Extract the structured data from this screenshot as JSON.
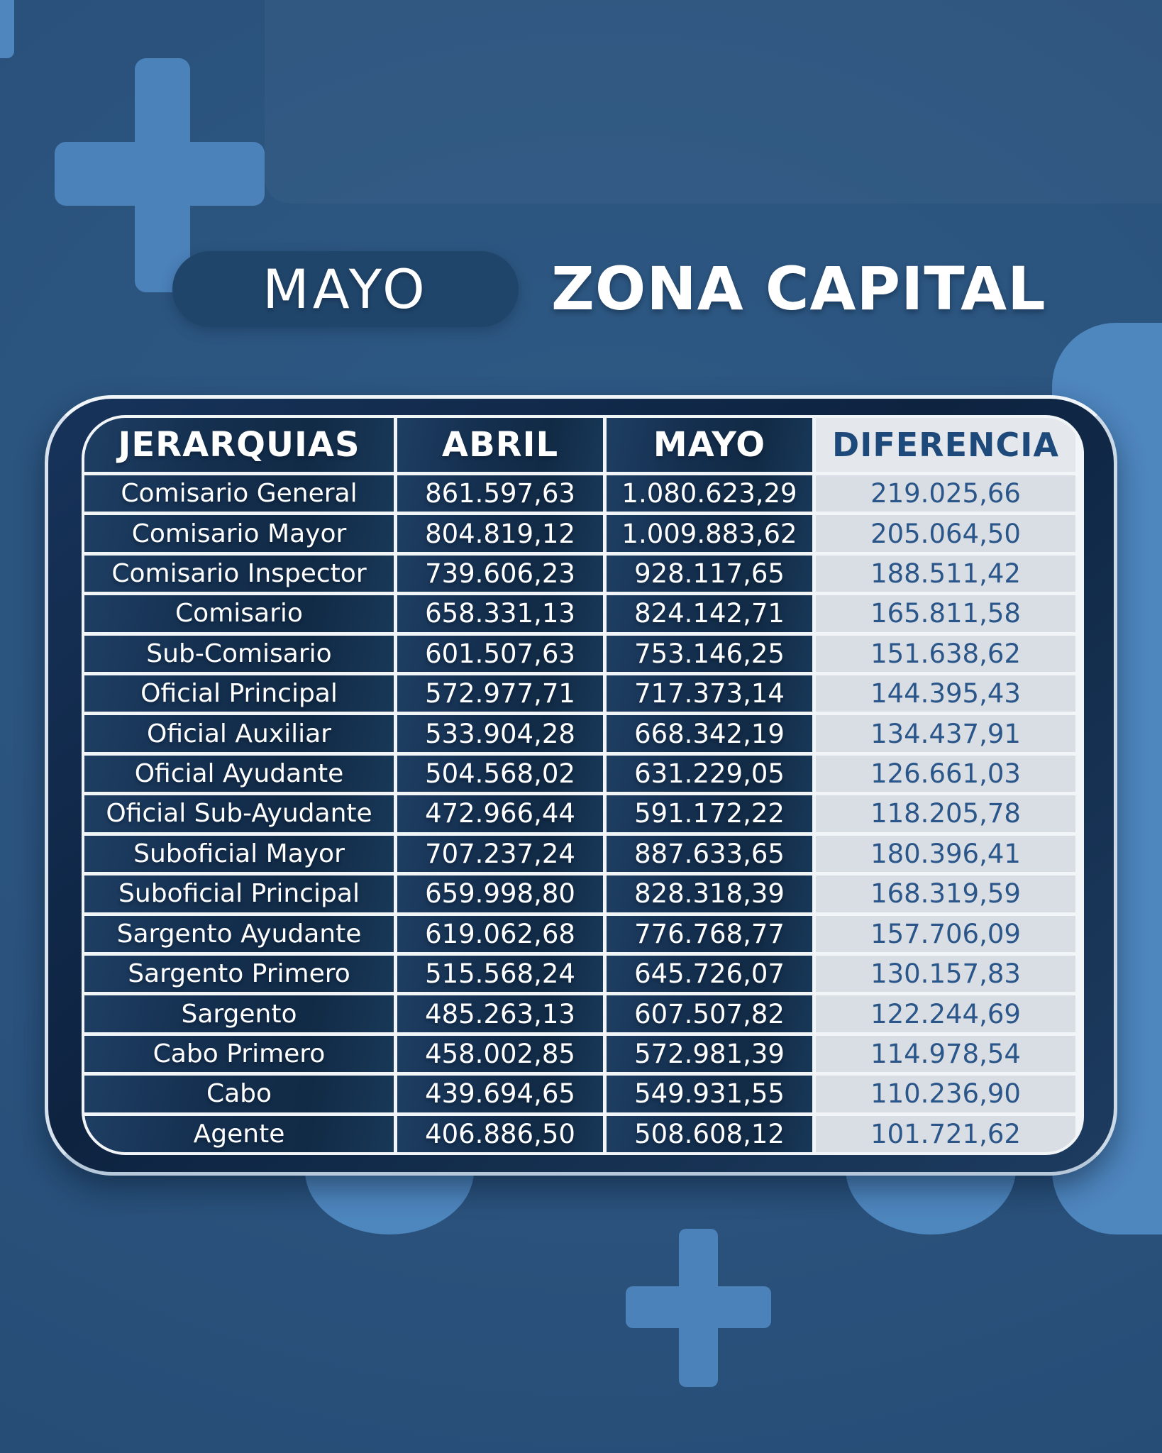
{
  "title": {
    "month_label": "MAYO",
    "zone_label": "ZONA CAPITAL"
  },
  "colors": {
    "page_background": "#2a527c",
    "decoration_light_blue": "#4c84bb",
    "card_navy": "#122c49",
    "grid_line_white": "#f2f5f8",
    "difference_column_gray": "#d9dee4",
    "difference_text_blue": "#2a568a"
  },
  "chart_data": {
    "type": "table",
    "title": "MAYO ZONA CAPITAL",
    "columns": [
      "JERARQUIAS",
      "ABRIL",
      "MAYO",
      "DIFERENCIA"
    ],
    "rows": [
      {
        "jerarquia": "Comisario General",
        "abril": "861.597,63",
        "mayo": "1.080.623,29",
        "diferencia": "219.025,66"
      },
      {
        "jerarquia": "Comisario Mayor",
        "abril": "804.819,12",
        "mayo": "1.009.883,62",
        "diferencia": "205.064,50"
      },
      {
        "jerarquia": "Comisario Inspector",
        "abril": "739.606,23",
        "mayo": "928.117,65",
        "diferencia": "188.511,42"
      },
      {
        "jerarquia": "Comisario",
        "abril": "658.331,13",
        "mayo": "824.142,71",
        "diferencia": "165.811,58"
      },
      {
        "jerarquia": "Sub-Comisario",
        "abril": "601.507,63",
        "mayo": "753.146,25",
        "diferencia": "151.638,62"
      },
      {
        "jerarquia": "Oficial Principal",
        "abril": "572.977,71",
        "mayo": "717.373,14",
        "diferencia": "144.395,43"
      },
      {
        "jerarquia": "Oficial Auxiliar",
        "abril": "533.904,28",
        "mayo": "668.342,19",
        "diferencia": "134.437,91"
      },
      {
        "jerarquia": "Oficial Ayudante",
        "abril": "504.568,02",
        "mayo": "631.229,05",
        "diferencia": "126.661,03"
      },
      {
        "jerarquia": "Oficial Sub-Ayudante",
        "abril": "472.966,44",
        "mayo": "591.172,22",
        "diferencia": "118.205,78"
      },
      {
        "jerarquia": "Suboficial Mayor",
        "abril": "707.237,24",
        "mayo": "887.633,65",
        "diferencia": "180.396,41"
      },
      {
        "jerarquia": "Suboficial Principal",
        "abril": "659.998,80",
        "mayo": "828.318,39",
        "diferencia": "168.319,59"
      },
      {
        "jerarquia": "Sargento Ayudante",
        "abril": "619.062,68",
        "mayo": "776.768,77",
        "diferencia": "157.706,09"
      },
      {
        "jerarquia": "Sargento Primero",
        "abril": "515.568,24",
        "mayo": "645.726,07",
        "diferencia": "130.157,83"
      },
      {
        "jerarquia": "Sargento",
        "abril": "485.263,13",
        "mayo": "607.507,82",
        "diferencia": "122.244,69"
      },
      {
        "jerarquia": "Cabo Primero",
        "abril": "458.002,85",
        "mayo": "572.981,39",
        "diferencia": "114.978,54"
      },
      {
        "jerarquia": "Cabo",
        "abril": "439.694,65",
        "mayo": "549.931,55",
        "diferencia": "110.236,90"
      },
      {
        "jerarquia": "Agente",
        "abril": "406.886,50",
        "mayo": "508.608,12",
        "diferencia": "101.721,62"
      }
    ]
  }
}
